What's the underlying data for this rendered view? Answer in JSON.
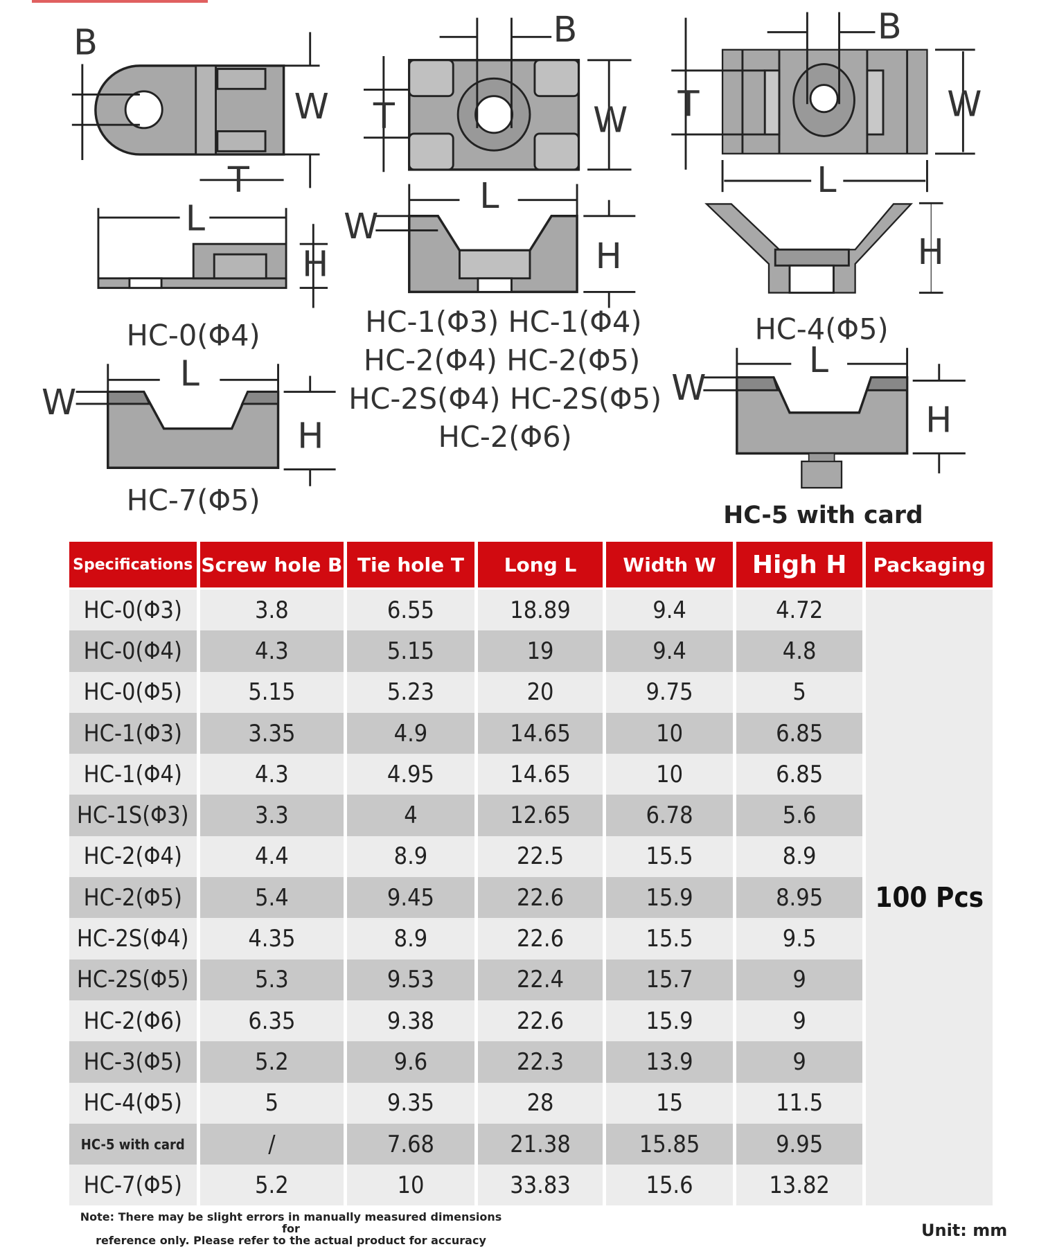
{
  "diagrams": {
    "dim_labels": {
      "B": "B",
      "T": "T",
      "W": "W",
      "L": "L",
      "H": "H"
    },
    "captions": {
      "hc0": "HC-0(Φ4)",
      "hc1_line1": "HC-1(Φ3) HC-1(Φ4)",
      "hc1_line2": "HC-2(Φ4) HC-2(Φ5)",
      "hc1_line3": "HC-2S(Φ4) HC-2S(Φ5)",
      "hc1_line4": "HC-2(Φ6)",
      "hc4": "HC-4(Φ5)",
      "hc7": "HC-7(Φ5)",
      "hc5": "HC-5 with card"
    }
  },
  "table": {
    "headers": [
      "Specifications",
      "Screw hole B",
      "Tie hole T",
      "Long L",
      "Width W",
      "High H",
      "Packaging"
    ],
    "rows": [
      [
        "HC-0(Φ3)",
        "3.8",
        "6.55",
        "18.89",
        "9.4",
        "4.72"
      ],
      [
        "HC-0(Φ4)",
        "4.3",
        "5.15",
        "19",
        "9.4",
        "4.8"
      ],
      [
        "HC-0(Φ5)",
        "5.15",
        "5.23",
        "20",
        "9.75",
        "5"
      ],
      [
        "HC-1(Φ3)",
        "3.35",
        "4.9",
        "14.65",
        "10",
        "6.85"
      ],
      [
        "HC-1(Φ4)",
        "4.3",
        "4.95",
        "14.65",
        "10",
        "6.85"
      ],
      [
        "HC-1S(Φ3)",
        "3.3",
        "4",
        "12.65",
        "6.78",
        "5.6"
      ],
      [
        "HC-2(Φ4)",
        "4.4",
        "8.9",
        "22.5",
        "15.5",
        "8.9"
      ],
      [
        "HC-2(Φ5)",
        "5.4",
        "9.45",
        "22.6",
        "15.9",
        "8.95"
      ],
      [
        "HC-2S(Φ4)",
        "4.35",
        "8.9",
        "22.6",
        "15.5",
        "9.5"
      ],
      [
        "HC-2S(Φ5)",
        "5.3",
        "9.53",
        "22.4",
        "15.7",
        "9"
      ],
      [
        "HC-2(Φ6)",
        "6.35",
        "9.38",
        "22.6",
        "15.9",
        "9"
      ],
      [
        "HC-3(Φ5)",
        "5.2",
        "9.6",
        "22.3",
        "13.9",
        "9"
      ],
      [
        "HC-4(Φ5)",
        "5",
        "9.35",
        "28",
        "15",
        "11.5"
      ],
      [
        "HC-5 with card",
        "/",
        "7.68",
        "21.38",
        "15.85",
        "9.95"
      ],
      [
        "HC-7(Φ5)",
        "5.2",
        "10",
        "33.83",
        "15.6",
        "13.82"
      ]
    ],
    "packaging": "100 Pcs"
  },
  "note": {
    "line1": "Note: There may be slight errors in manually measured dimensions for",
    "line2": "reference only. Please refer to the actual product for accuracy"
  },
  "unit": "Unit: mm",
  "colors": {
    "header_red": "#d10a10",
    "part_gray": "#a8a8a8",
    "row_light": "#ececec",
    "row_dark": "#c8c8c8"
  }
}
